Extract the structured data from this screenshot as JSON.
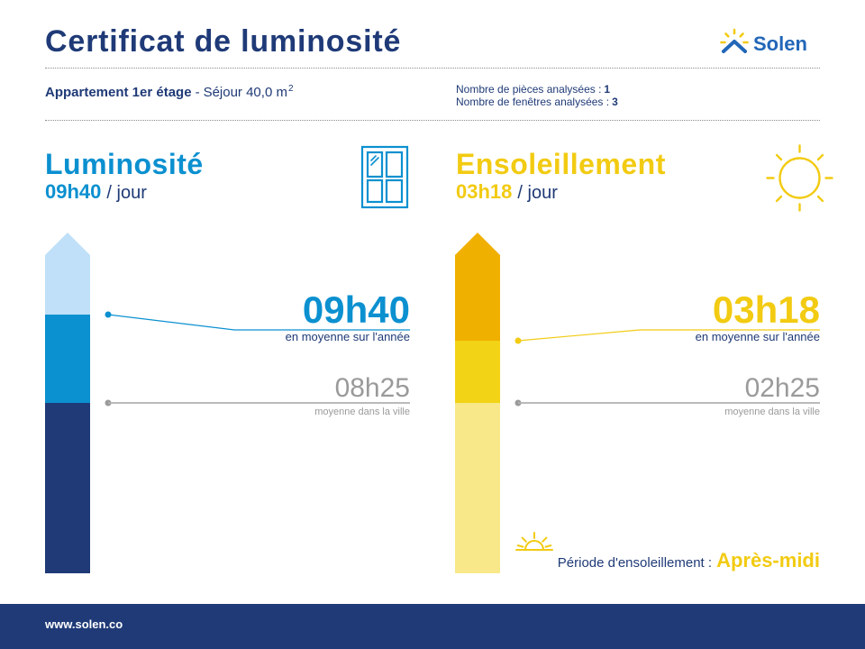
{
  "header": {
    "title": "Certificat de luminosité",
    "logo": {
      "text": "Solen",
      "icon": "sun-house-logo-icon"
    }
  },
  "property": {
    "name": "Appartement 1er étage",
    "separator": "-",
    "room": "Séjour 40,0 m",
    "area_exponent": "2"
  },
  "analysis": {
    "rooms_label": "Nombre de pièces analysées :",
    "rooms_count": "1",
    "windows_label": "Nombre de fenêtres analysées :",
    "windows_count": "3"
  },
  "luminosite": {
    "title": "Luminosité",
    "icon": "window-icon",
    "daily_value": "09h40",
    "daily_unit": "/ jour",
    "annual_average": "09h40",
    "annual_average_label": "en moyenne sur l'année",
    "city_average": "08h25",
    "city_average_label": "moyenne dans la ville"
  },
  "ensoleillement": {
    "title": "Ensoleillement",
    "icon": "sun-icon",
    "daily_value": "03h18",
    "daily_unit": "/ jour",
    "annual_average": "03h18",
    "annual_average_label": "en moyenne sur l'année",
    "city_average": "02h25",
    "city_average_label": "moyenne dans la ville",
    "period_icon": "sunset-icon",
    "period_label": "Période d'ensoleillement :",
    "period_value": "Après-midi"
  },
  "footer": {
    "website": "www.solen.co"
  },
  "colors": {
    "navy": "#1f3a77",
    "blue": "#0b90d0",
    "light-blue": "#bfe0f8",
    "yellow": "#f2cb12",
    "dark-yellow": "#f0b000",
    "mid-yellow": "#f3d316",
    "light-yellow": "#f8e88a",
    "grey": "#9a9a9a",
    "logo-blue": "#2266b8"
  }
}
